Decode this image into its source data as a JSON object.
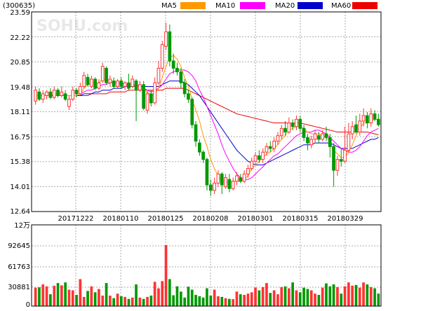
{
  "header": {
    "stock_code": "(300635)",
    "watermark": "SOHU.com",
    "legend": [
      {
        "label": "MA5",
        "color": "#ff9900"
      },
      {
        "label": "MA10",
        "color": "#ff00ff"
      },
      {
        "label": "MA20",
        "color": "#0000cc"
      },
      {
        "label": "MA60",
        "color": "#ee0000"
      }
    ]
  },
  "colors": {
    "up": "#ff3333",
    "down": "#009900",
    "grid": "#aaaaaa",
    "frame": "#000000"
  },
  "price_axis": {
    "labels": [
      "23.59",
      "22.22",
      "20.85",
      "19.48",
      "18.11",
      "16.75",
      "15.38",
      "14.01",
      "12.64"
    ]
  },
  "date_axis": {
    "labels": [
      "20171222",
      "20180110",
      "20180125",
      "20180208",
      "20180301",
      "20180315",
      "20180329"
    ]
  },
  "volume_axis": {
    "unit": "12万",
    "labels": [
      "92645",
      "61763",
      "30881",
      "0"
    ]
  },
  "chart_data": {
    "type": "candlestick",
    "price_range": [
      12.64,
      23.59
    ],
    "volume_range": [
      0,
      123527
    ],
    "candles": [
      [
        18.7,
        19.3,
        19.5,
        18.5
      ],
      [
        19.2,
        18.8,
        19.4,
        18.7
      ],
      [
        18.8,
        19.1,
        19.3,
        18.6
      ],
      [
        19.0,
        19.2,
        19.3,
        18.8
      ],
      [
        19.2,
        18.9,
        19.4,
        18.8
      ],
      [
        18.9,
        19.3,
        19.5,
        18.8
      ],
      [
        19.3,
        19.0,
        19.4,
        18.9
      ],
      [
        19.0,
        19.2,
        19.5,
        18.9
      ],
      [
        19.1,
        18.8,
        19.3,
        18.7
      ],
      [
        18.4,
        18.8,
        19.0,
        18.2
      ],
      [
        18.8,
        19.3,
        19.5,
        18.7
      ],
      [
        19.3,
        19.1,
        19.4,
        18.9
      ],
      [
        19.1,
        19.5,
        19.7,
        19.0
      ],
      [
        19.5,
        20.1,
        20.3,
        19.4
      ],
      [
        20.0,
        19.6,
        20.2,
        19.5
      ],
      [
        19.5,
        19.9,
        20.1,
        19.4
      ],
      [
        19.9,
        19.4,
        20.0,
        19.3
      ],
      [
        19.4,
        19.7,
        19.9,
        19.3
      ],
      [
        19.8,
        20.6,
        20.8,
        19.7
      ],
      [
        20.5,
        19.7,
        20.6,
        19.6
      ],
      [
        19.7,
        19.9,
        20.1,
        19.5
      ],
      [
        19.8,
        19.5,
        20.0,
        19.4
      ],
      [
        19.5,
        19.8,
        19.9,
        19.4
      ],
      [
        19.8,
        19.5,
        20.0,
        19.4
      ],
      [
        19.5,
        19.7,
        19.8,
        19.3
      ],
      [
        19.7,
        19.4,
        20.2,
        19.3
      ],
      [
        19.5,
        19.9,
        20.1,
        19.4
      ],
      [
        19.8,
        19.3,
        19.9,
        17.6
      ],
      [
        19.3,
        19.6,
        19.8,
        19.2
      ],
      [
        19.6,
        18.3,
        19.8,
        18.2
      ],
      [
        18.2,
        19.1,
        19.3,
        18.0
      ],
      [
        19.1,
        18.6,
        19.3,
        18.4
      ],
      [
        18.6,
        19.7,
        20.0,
        18.5
      ],
      [
        19.7,
        20.5,
        20.9,
        19.6
      ],
      [
        20.5,
        21.8,
        22.0,
        20.3
      ],
      [
        21.7,
        22.5,
        23.0,
        21.5
      ],
      [
        22.5,
        20.9,
        22.9,
        20.6
      ],
      [
        20.9,
        20.5,
        21.3,
        20.2
      ],
      [
        20.5,
        20.3,
        20.8,
        20.1
      ],
      [
        20.3,
        19.7,
        20.5,
        19.4
      ],
      [
        19.7,
        19.1,
        19.9,
        18.9
      ],
      [
        19.1,
        18.8,
        19.3,
        18.6
      ],
      [
        18.8,
        17.4,
        18.9,
        17.2
      ],
      [
        17.4,
        16.5,
        17.6,
        16.2
      ],
      [
        16.4,
        15.9,
        16.6,
        15.7
      ],
      [
        15.9,
        15.5,
        16.0,
        15.3
      ],
      [
        15.5,
        14.1,
        15.6,
        13.8
      ],
      [
        14.1,
        13.8,
        14.4,
        13.5
      ],
      [
        13.8,
        14.2,
        14.5,
        13.6
      ],
      [
        14.2,
        14.7,
        14.9,
        14.0
      ],
      [
        14.7,
        14.1,
        14.8,
        13.6
      ],
      [
        14.0,
        14.5,
        14.7,
        13.9
      ],
      [
        14.4,
        13.9,
        14.7,
        13.7
      ],
      [
        13.9,
        14.3,
        14.5,
        13.8
      ],
      [
        14.3,
        14.6,
        14.8,
        14.1
      ],
      [
        14.5,
        14.3,
        14.7,
        14.2
      ],
      [
        14.3,
        14.7,
        14.9,
        14.2
      ],
      [
        14.7,
        15.0,
        15.2,
        14.5
      ],
      [
        15.0,
        15.4,
        15.6,
        14.9
      ],
      [
        15.4,
        15.7,
        15.9,
        15.2
      ],
      [
        15.7,
        15.5,
        16.0,
        15.3
      ],
      [
        15.5,
        15.9,
        16.1,
        15.3
      ],
      [
        15.9,
        16.2,
        16.4,
        15.7
      ],
      [
        16.2,
        16.1,
        16.5,
        15.9
      ],
      [
        16.1,
        16.5,
        16.7,
        15.9
      ],
      [
        16.5,
        16.8,
        17.0,
        16.3
      ],
      [
        16.8,
        17.2,
        17.4,
        16.6
      ],
      [
        17.2,
        17.0,
        17.6,
        16.8
      ],
      [
        17.0,
        17.5,
        17.8,
        16.9
      ],
      [
        17.5,
        17.3,
        17.7,
        17.1
      ],
      [
        17.3,
        17.7,
        17.9,
        17.1
      ],
      [
        17.7,
        17.2,
        17.9,
        17.0
      ],
      [
        17.2,
        16.7,
        17.4,
        16.5
      ],
      [
        16.7,
        16.4,
        16.9,
        16.0
      ],
      [
        16.3,
        16.6,
        16.8,
        16.1
      ],
      [
        16.6,
        16.9,
        17.1,
        16.4
      ],
      [
        16.8,
        16.6,
        17.0,
        16.4
      ],
      [
        16.6,
        16.9,
        17.1,
        16.5
      ],
      [
        16.9,
        16.7,
        17.3,
        16.5
      ],
      [
        16.7,
        16.2,
        16.9,
        15.6
      ],
      [
        16.2,
        14.9,
        16.4,
        14.0
      ],
      [
        14.9,
        15.5,
        15.7,
        14.6
      ],
      [
        15.5,
        15.4,
        16.1,
        15.1
      ],
      [
        15.4,
        16.0,
        17.3,
        15.3
      ],
      [
        16.0,
        16.9,
        17.5,
        15.9
      ],
      [
        16.9,
        17.3,
        17.6,
        16.6
      ],
      [
        17.4,
        17.0,
        17.9,
        16.9
      ],
      [
        17.0,
        17.6,
        18.0,
        16.8
      ],
      [
        17.6,
        17.9,
        18.3,
        17.3
      ],
      [
        17.9,
        17.5,
        18.1,
        17.2
      ],
      [
        17.5,
        18.0,
        18.3,
        17.3
      ],
      [
        18.0,
        17.7,
        18.2,
        17.6
      ],
      [
        17.7,
        17.4,
        18.0,
        17.3
      ]
    ],
    "volumes": [
      28000,
      28500,
      33000,
      30000,
      18000,
      31000,
      35000,
      31500,
      36000,
      25000,
      24000,
      17000,
      41000,
      14000,
      23000,
      30000,
      21000,
      26000,
      16000,
      35000,
      16000,
      12000,
      19000,
      15000,
      14000,
      11000,
      13000,
      33000,
      13000,
      11000,
      14000,
      16000,
      37000,
      27000,
      38000,
      92645,
      41000,
      16500,
      30000,
      22000,
      13000,
      29500,
      25000,
      17000,
      15000,
      13000,
      27000,
      16000,
      25000,
      15000,
      14000,
      12000,
      11000,
      10500,
      22000,
      18000,
      17000,
      19000,
      21000,
      28000,
      24000,
      29000,
      35000,
      20000,
      24000,
      18000,
      29000,
      30000,
      27000,
      36000,
      24000,
      21000,
      28000,
      26000,
      24000,
      19000,
      17000,
      28000,
      34500,
      30000,
      33000,
      29000,
      19000,
      30000,
      36000,
      31000,
      32000,
      28000,
      36000,
      33000,
      29000,
      27000,
      19000
    ],
    "ma5": [
      19.0,
      19.0,
      19.0,
      19.0,
      19.0,
      19.1,
      19.1,
      19.1,
      19.0,
      19.0,
      19.0,
      19.0,
      19.1,
      19.4,
      19.6,
      19.7,
      19.7,
      19.7,
      19.9,
      19.9,
      19.8,
      19.8,
      19.7,
      19.6,
      19.5,
      19.6,
      19.6,
      19.5,
      19.5,
      19.2,
      19.2,
      19.0,
      19.1,
      19.4,
      20.0,
      20.6,
      21.1,
      21.2,
      21.0,
      20.6,
      20.0,
      19.5,
      18.8,
      18.2,
      17.6,
      16.8,
      16.2,
      15.5,
      15.0,
      14.6,
      14.3,
      14.3,
      14.2,
      14.3,
      14.3,
      14.3,
      14.4,
      14.6,
      15.0,
      15.2,
      15.4,
      15.6,
      15.8,
      15.9,
      16.1,
      16.3,
      16.6,
      16.8,
      17.1,
      17.2,
      17.3,
      17.3,
      17.2,
      17.0,
      16.9,
      16.9,
      16.9,
      16.8,
      16.7,
      16.5,
      16.0,
      15.8,
      15.6,
      15.6,
      15.9,
      16.3,
      16.8,
      17.2,
      17.5,
      17.5,
      17.6,
      17.7,
      17.7
    ],
    "ma10": [
      19.0,
      19.0,
      19.0,
      19.0,
      19.0,
      19.0,
      19.0,
      19.0,
      19.0,
      19.0,
      19.0,
      19.0,
      19.1,
      19.2,
      19.3,
      19.3,
      19.4,
      19.5,
      19.6,
      19.6,
      19.7,
      19.7,
      19.7,
      19.7,
      19.6,
      19.6,
      19.6,
      19.6,
      19.5,
      19.4,
      19.3,
      19.2,
      19.3,
      19.4,
      19.6,
      19.9,
      20.2,
      20.3,
      20.4,
      20.4,
      20.4,
      20.3,
      20.1,
      19.8,
      19.3,
      18.9,
      18.4,
      17.9,
      17.4,
      16.9,
      16.3,
      15.8,
      15.4,
      15.0,
      14.7,
      14.5,
      14.4,
      14.4,
      14.5,
      14.7,
      14.9,
      15.1,
      15.3,
      15.5,
      15.7,
      15.8,
      16.0,
      16.2,
      16.4,
      16.6,
      16.8,
      16.9,
      17.0,
      17.0,
      17.0,
      17.1,
      17.1,
      17.0,
      16.9,
      16.7,
      16.5,
      16.3,
      16.1,
      16.0,
      15.9,
      15.9,
      16.0,
      16.2,
      16.5,
      16.8,
      17.0,
      17.1,
      17.2
    ],
    "ma20": [
      19.0,
      19.0,
      19.0,
      19.0,
      19.0,
      19.0,
      19.0,
      19.0,
      19.0,
      19.0,
      19.0,
      19.0,
      19.0,
      19.1,
      19.1,
      19.1,
      19.2,
      19.2,
      19.3,
      19.3,
      19.3,
      19.4,
      19.4,
      19.4,
      19.5,
      19.5,
      19.5,
      19.5,
      19.5,
      19.5,
      19.5,
      19.5,
      19.5,
      19.5,
      19.6,
      19.7,
      19.8,
      19.8,
      19.8,
      19.8,
      19.7,
      19.6,
      19.4,
      19.2,
      19.0,
      18.7,
      18.4,
      18.1,
      17.8,
      17.5,
      17.2,
      16.9,
      16.6,
      16.3,
      16.0,
      15.8,
      15.6,
      15.4,
      15.3,
      15.2,
      15.2,
      15.2,
      15.3,
      15.4,
      15.5,
      15.6,
      15.7,
      15.8,
      15.9,
      16.0,
      16.1,
      16.2,
      16.3,
      16.3,
      16.3,
      16.4,
      16.4,
      16.4,
      16.4,
      16.4,
      16.3,
      16.2,
      16.1,
      16.1,
      16.1,
      16.1,
      16.2,
      16.3,
      16.4,
      16.5,
      16.6,
      16.6,
      16.7
    ],
    "ma60": [
      19.0,
      19.0,
      19.0,
      19.0,
      19.0,
      19.0,
      19.0,
      19.0,
      19.0,
      19.0,
      19.0,
      19.0,
      19.0,
      19.0,
      19.0,
      19.1,
      19.1,
      19.1,
      19.1,
      19.1,
      19.2,
      19.2,
      19.2,
      19.2,
      19.2,
      19.3,
      19.3,
      19.3,
      19.3,
      19.3,
      19.3,
      19.3,
      19.3,
      19.3,
      19.3,
      19.4,
      19.4,
      19.4,
      19.4,
      19.4,
      19.4,
      19.3,
      19.2,
      19.1,
      19.0,
      18.9,
      18.8,
      18.7,
      18.6,
      18.5,
      18.4,
      18.3,
      18.2,
      18.1,
      18.0,
      17.95,
      17.9,
      17.85,
      17.8,
      17.75,
      17.7,
      17.65,
      17.6,
      17.55,
      17.5,
      17.5,
      17.5,
      17.5,
      17.5,
      17.5,
      17.5,
      17.5,
      17.45,
      17.4,
      17.35,
      17.3,
      17.25,
      17.2,
      17.15,
      17.1,
      17.05,
      17.0,
      17.0,
      17.0,
      17.0,
      17.0,
      17.0,
      17.0,
      17.0,
      17.0,
      16.95,
      16.9,
      16.85
    ]
  }
}
